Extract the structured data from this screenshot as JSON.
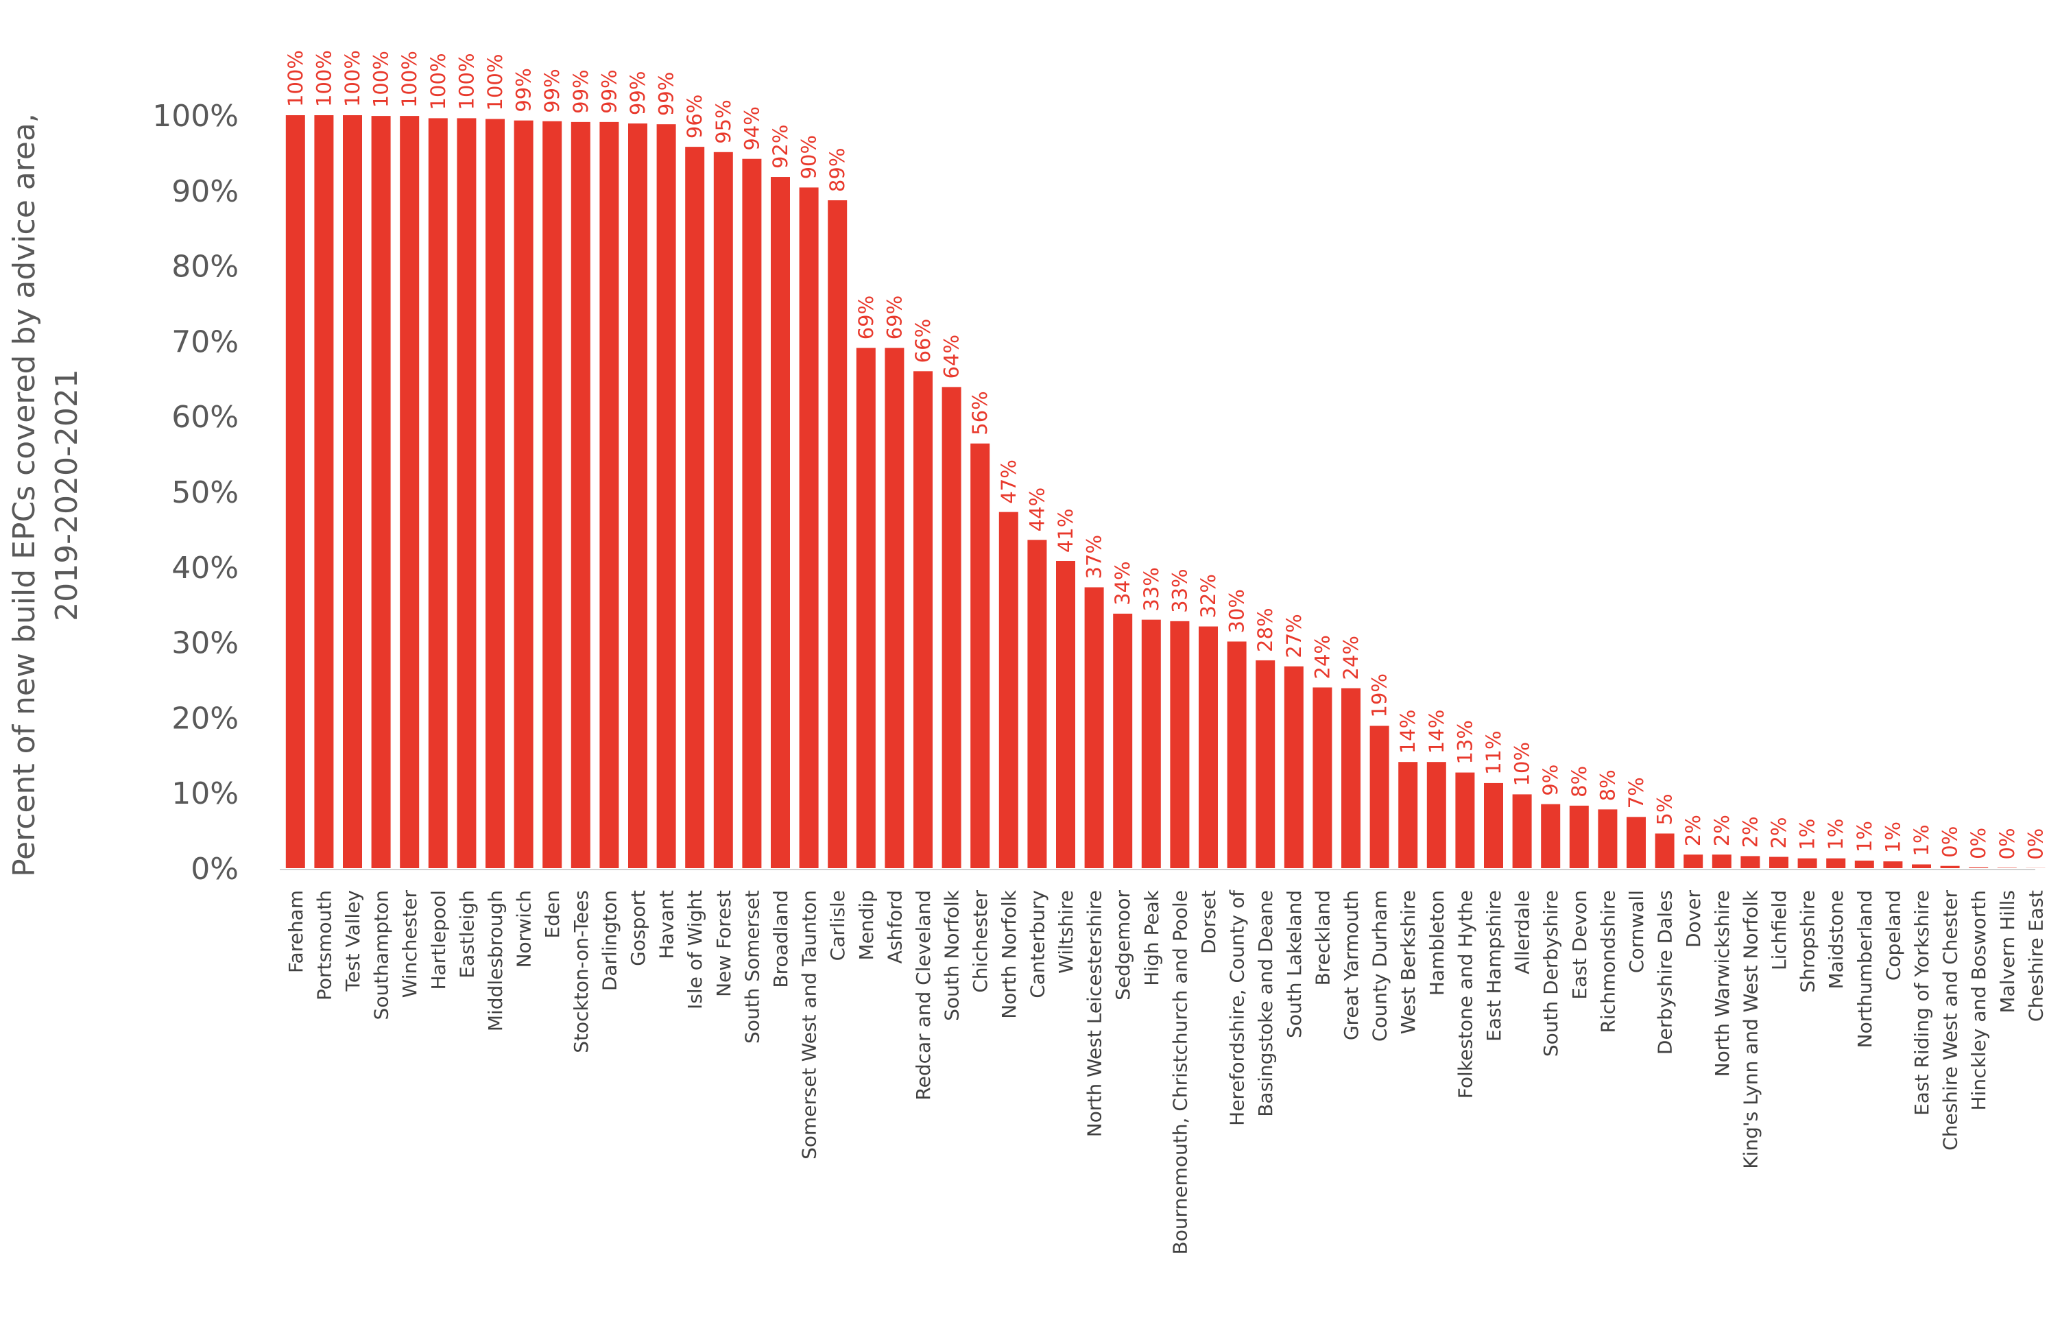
{
  "chart_data": {
    "type": "bar",
    "ylabel": [
      "Percent of new build EPCs covered by advice area,",
      "2019-2020-2021"
    ],
    "ylim": [
      0,
      100
    ],
    "ytick_labels": [
      "0%",
      "10%",
      "20%",
      "30%",
      "40%",
      "50%",
      "60%",
      "70%",
      "80%",
      "90%",
      "100%"
    ],
    "bar_color": "#e8382b",
    "grid": false,
    "categories": [
      "Fareham",
      "Portsmouth",
      "Test Valley",
      "Southampton",
      "Winchester",
      "Hartlepool",
      "Eastleigh",
      "Middlesbrough",
      "Norwich",
      "Eden",
      "Stockton-on-Tees",
      "Darlington",
      "Gosport",
      "Havant",
      "Isle of Wight",
      "New Forest",
      "South Somerset",
      "Broadland",
      "Somerset West and Taunton",
      "Carlisle",
      "Mendip",
      "Ashford",
      "Redcar and Cleveland",
      "South Norfolk",
      "Chichester",
      "North Norfolk",
      "Canterbury",
      "Wiltshire",
      "North West Leicestershire",
      "Sedgemoor",
      "High Peak",
      "Bournemouth, Christchurch and Poole",
      "Dorset",
      "Herefordshire, County of",
      "Basingstoke and Deane",
      "South Lakeland",
      "Breckland",
      "Great Yarmouth",
      "County Durham",
      "West Berkshire",
      "Hambleton",
      "Folkestone and Hythe",
      "East Hampshire",
      "Allerdale",
      "South Derbyshire",
      "East Devon",
      "Richmondshire",
      "Cornwall",
      "Derbyshire Dales",
      "Dover",
      "North Warwickshire",
      "King's Lynn and West Norfolk",
      "Lichfield",
      "Shropshire",
      "Maidstone",
      "Northumberland",
      "Copeland",
      "East Riding of Yorkshire",
      "Cheshire West and Chester",
      "Hinckley and Bosworth",
      "Malvern Hills",
      "Cheshire East"
    ],
    "values": [
      100,
      100,
      100,
      99.9,
      99.9,
      99.6,
      99.6,
      99.5,
      99.3,
      99.2,
      99.1,
      99.1,
      98.9,
      98.8,
      95.8,
      95.1,
      94.2,
      91.8,
      90.4,
      88.7,
      69.1,
      69.1,
      66,
      63.9,
      56.4,
      47.3,
      43.6,
      40.8,
      37.3,
      33.8,
      33,
      32.8,
      32.1,
      30.1,
      27.6,
      26.8,
      24,
      23.9,
      18.9,
      14.1,
      14.1,
      12.7,
      11.3,
      9.8,
      8.5,
      8.3,
      7.8,
      6.8,
      4.6,
      1.8,
      1.8,
      1.6,
      1.5,
      1.3,
      1.3,
      1.0,
      0.9,
      0.5,
      0.3,
      0.1,
      0.05,
      0.02
    ],
    "data_labels": [
      "100%",
      "100%",
      "100%",
      "100%",
      "100%",
      "100%",
      "100%",
      "100%",
      "99%",
      "99%",
      "99%",
      "99%",
      "99%",
      "99%",
      "96%",
      "95%",
      "94%",
      "92%",
      "90%",
      "89%",
      "69%",
      "69%",
      "66%",
      "64%",
      "56%",
      "47%",
      "44%",
      "41%",
      "37%",
      "34%",
      "33%",
      "33%",
      "32%",
      "30%",
      "28%",
      "27%",
      "24%",
      "24%",
      "19%",
      "14%",
      "14%",
      "13%",
      "11%",
      "10%",
      "9%",
      "8%",
      "8%",
      "7%",
      "5%",
      "2%",
      "2%",
      "2%",
      "2%",
      "1%",
      "1%",
      "1%",
      "1%",
      "1%",
      "0%",
      "0%",
      "0%",
      "0%"
    ]
  }
}
